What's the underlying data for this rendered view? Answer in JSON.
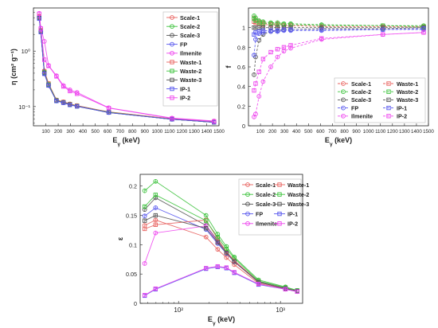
{
  "chart_data": [
    {
      "type": "line",
      "panel": "top-left",
      "xlabel": "Eγ (keV)",
      "xlabel_main": "E",
      "xlabel_sub": "γ",
      "xlabel_unit": " (keV)",
      "ylabel": "η (cm² g⁻¹)",
      "x_scale": "linear",
      "y_scale": "log",
      "xlim": [
        0,
        1500
      ],
      "ylim": [
        0.045,
        6
      ],
      "x_ticks": [
        "100",
        "200",
        "300",
        "400",
        "500",
        "600",
        "700",
        "800",
        "900",
        "1000",
        "1100",
        "1200",
        "1300",
        "1400",
        "1500"
      ],
      "y_ticks": [
        {
          "v": 0.1,
          "label": "10⁻¹"
        },
        {
          "v": 1,
          "label": "10⁰"
        }
      ],
      "legend_position": "top-right",
      "series": [
        {
          "name": "Scale-1",
          "color": "#e8615e",
          "marker": "o",
          "x": [
            46.5,
            59.5,
            88,
            122,
            186,
            242,
            295,
            352,
            609,
            1120,
            1460
          ],
          "y": [
            4.3,
            2.4,
            0.44,
            0.26,
            0.132,
            0.122,
            0.112,
            0.104,
            0.08,
            0.06,
            0.053
          ]
        },
        {
          "name": "Scale-2",
          "color": "#3cc23c",
          "marker": "o",
          "x": [
            46.5,
            59.5,
            88,
            122,
            186,
            242,
            295,
            352,
            609,
            1120,
            1460
          ],
          "y": [
            4.1,
            2.3,
            0.42,
            0.25,
            0.13,
            0.12,
            0.11,
            0.103,
            0.079,
            0.059,
            0.052
          ]
        },
        {
          "name": "Scale-3",
          "color": "#555555",
          "marker": "o",
          "x": [
            46.5,
            59.5,
            88,
            122,
            186,
            242,
            295,
            352,
            609,
            1120,
            1460
          ],
          "y": [
            4.0,
            2.25,
            0.4,
            0.24,
            0.128,
            0.118,
            0.108,
            0.102,
            0.079,
            0.059,
            0.052
          ]
        },
        {
          "name": "FP",
          "color": "#5555ee",
          "marker": "o",
          "x": [
            46.5,
            59.5,
            88,
            122,
            186,
            242,
            295,
            352,
            609,
            1120,
            1460
          ],
          "y": [
            3.9,
            2.2,
            0.39,
            0.24,
            0.126,
            0.117,
            0.107,
            0.101,
            0.078,
            0.059,
            0.052
          ]
        },
        {
          "name": "Ilmenite",
          "color": "#ee44ee",
          "marker": "o",
          "x": [
            46.5,
            59.5,
            88,
            122,
            186,
            242,
            295,
            352,
            609,
            1120,
            1460
          ],
          "y": [
            4.8,
            2.6,
            1.5,
            0.55,
            0.36,
            0.24,
            0.2,
            0.18,
            0.095,
            0.062,
            0.055
          ]
        },
        {
          "name": "Waste-1",
          "color": "#e8615e",
          "marker": "s",
          "x": [
            46.5,
            59.5,
            88,
            122,
            186,
            242,
            295,
            352,
            609,
            1120,
            1460
          ],
          "y": [
            4.2,
            2.35,
            0.43,
            0.26,
            0.131,
            0.121,
            0.111,
            0.104,
            0.08,
            0.06,
            0.053
          ]
        },
        {
          "name": "Waste-2",
          "color": "#3cc23c",
          "marker": "s",
          "x": [
            46.5,
            59.5,
            88,
            122,
            186,
            242,
            295,
            352,
            609,
            1120,
            1460
          ],
          "y": [
            4.0,
            2.3,
            0.41,
            0.25,
            0.129,
            0.119,
            0.109,
            0.102,
            0.079,
            0.059,
            0.052
          ]
        },
        {
          "name": "Waste-3",
          "color": "#555555",
          "marker": "s",
          "x": [
            46.5,
            59.5,
            88,
            122,
            186,
            242,
            295,
            352,
            609,
            1120,
            1460
          ],
          "y": [
            3.95,
            2.25,
            0.4,
            0.24,
            0.127,
            0.118,
            0.108,
            0.101,
            0.078,
            0.059,
            0.052
          ]
        },
        {
          "name": "IP-1",
          "color": "#5555ee",
          "marker": "s",
          "x": [
            46.5,
            59.5,
            88,
            122,
            186,
            242,
            295,
            352,
            609,
            1120,
            1460
          ],
          "y": [
            3.85,
            2.2,
            0.39,
            0.24,
            0.126,
            0.117,
            0.107,
            0.101,
            0.078,
            0.059,
            0.052
          ]
        },
        {
          "name": "IP-2",
          "color": "#ee44ee",
          "marker": "s",
          "x": [
            46.5,
            59.5,
            88,
            122,
            186,
            242,
            295,
            352,
            609,
            1120,
            1460
          ],
          "y": [
            4.7,
            2.55,
            0.7,
            0.54,
            0.35,
            0.23,
            0.19,
            0.17,
            0.094,
            0.061,
            0.054
          ]
        }
      ]
    },
    {
      "type": "line",
      "panel": "top-right",
      "xlabel": "Eγ (keV)",
      "xlabel_main": "E",
      "xlabel_sub": "γ",
      "xlabel_unit": " (keV)",
      "ylabel": "f",
      "x_scale": "linear",
      "y_scale": "linear",
      "xlim": [
        0,
        1500
      ],
      "ylim": [
        0,
        1.2
      ],
      "x_ticks": [
        "100",
        "200",
        "300",
        "400",
        "500",
        "600",
        "700",
        "800",
        "900",
        "1000",
        "1100",
        "1200",
        "1300",
        "1400",
        "1500"
      ],
      "y_ticks": [
        "0",
        "0.2",
        "0.4",
        "0.6",
        "0.8",
        "1"
      ],
      "legend_position": "bottom-right",
      "series": [
        {
          "name": "Scale-1",
          "color": "#e8615e",
          "marker": "o",
          "x": [
            46.5,
            59.5,
            88,
            122,
            186,
            242,
            295,
            352,
            609,
            1120,
            1460
          ],
          "y": [
            1.1,
            1.08,
            1.06,
            1.05,
            1.04,
            1.04,
            1.03,
            1.03,
            1.02,
            1.02,
            1.01
          ]
        },
        {
          "name": "Scale-2",
          "color": "#3cc23c",
          "marker": "o",
          "x": [
            46.5,
            59.5,
            88,
            122,
            186,
            242,
            295,
            352,
            609,
            1120,
            1460
          ],
          "y": [
            1.12,
            1.1,
            1.07,
            1.06,
            1.05,
            1.05,
            1.04,
            1.04,
            1.03,
            1.02,
            1.02
          ]
        },
        {
          "name": "Scale-3",
          "color": "#555555",
          "marker": "o",
          "x": [
            46.5,
            59.5,
            88,
            122,
            186,
            242,
            295,
            352,
            609,
            1120,
            1460
          ],
          "y": [
            0.52,
            0.7,
            0.87,
            0.93,
            0.96,
            0.97,
            0.98,
            0.98,
            0.99,
            0.99,
            1.0
          ]
        },
        {
          "name": "FP",
          "color": "#5555ee",
          "marker": "o",
          "x": [
            46.5,
            59.5,
            88,
            122,
            186,
            242,
            295,
            352,
            609,
            1120,
            1460
          ],
          "y": [
            0.72,
            0.88,
            0.94,
            0.95,
            0.96,
            0.96,
            0.97,
            0.97,
            0.97,
            0.98,
            0.98
          ]
        },
        {
          "name": "Ilmenite",
          "color": "#ee44ee",
          "marker": "o",
          "x": [
            46.5,
            59.5,
            88,
            122,
            186,
            242,
            295,
            352,
            609,
            1120,
            1460
          ],
          "y": [
            0.09,
            0.12,
            0.3,
            0.45,
            0.6,
            0.7,
            0.76,
            0.79,
            0.88,
            0.93,
            0.95
          ]
        },
        {
          "name": "Waste-1",
          "color": "#e8615e",
          "marker": "s",
          "x": [
            46.5,
            59.5,
            88,
            122,
            186,
            242,
            295,
            352,
            609,
            1120,
            1460
          ],
          "y": [
            1.06,
            1.05,
            1.04,
            1.03,
            1.03,
            1.02,
            1.02,
            1.02,
            1.01,
            1.01,
            1.01
          ]
        },
        {
          "name": "Waste-2",
          "color": "#3cc23c",
          "marker": "s",
          "x": [
            46.5,
            59.5,
            88,
            122,
            186,
            242,
            295,
            352,
            609,
            1120,
            1460
          ],
          "y": [
            1.09,
            1.07,
            1.05,
            1.04,
            1.04,
            1.03,
            1.03,
            1.03,
            1.02,
            1.02,
            1.01
          ]
        },
        {
          "name": "Waste-3",
          "color": "#555555",
          "marker": "s",
          "x": [
            46.5,
            59.5,
            88,
            122,
            186,
            242,
            295,
            352,
            609,
            1120,
            1460
          ],
          "y": [
            1.0,
            1.0,
            1.0,
            1.0,
            1.0,
            1.0,
            1.0,
            1.0,
            1.0,
            1.0,
            1.0
          ]
        },
        {
          "name": "IP-1",
          "color": "#5555ee",
          "marker": "s",
          "x": [
            46.5,
            59.5,
            88,
            122,
            186,
            242,
            295,
            352,
            609,
            1120,
            1460
          ],
          "y": [
            0.93,
            0.95,
            0.96,
            0.97,
            0.97,
            0.97,
            0.98,
            0.98,
            0.98,
            0.98,
            0.99
          ]
        },
        {
          "name": "IP-2",
          "color": "#ee44ee",
          "marker": "s",
          "x": [
            46.5,
            59.5,
            88,
            122,
            186,
            242,
            295,
            352,
            609,
            1120,
            1460
          ],
          "y": [
            0.36,
            0.43,
            0.55,
            0.68,
            0.75,
            0.78,
            0.8,
            0.82,
            0.89,
            0.93,
            0.95
          ]
        }
      ]
    },
    {
      "type": "line",
      "panel": "bottom-center",
      "xlabel": "Eγ (keV)",
      "xlabel_main": "E",
      "xlabel_sub": "γ",
      "xlabel_unit": " (keV)",
      "ylabel": "ε",
      "x_scale": "log",
      "y_scale": "linear",
      "xlim": [
        42,
        1650
      ],
      "ylim": [
        0,
        0.22
      ],
      "x_ticks": [
        {
          "v": 100,
          "label": "10²"
        },
        {
          "v": 1000,
          "label": "10³"
        }
      ],
      "y_ticks": [
        "0",
        "0.05",
        "0.1",
        "0.15",
        "0.2"
      ],
      "legend_position": "top-right",
      "series": [
        {
          "name": "Scale-1",
          "color": "#e8615e",
          "marker": "o",
          "x": [
            46.5,
            59.5,
            186,
            242,
            295,
            352,
            609,
            1120,
            1460
          ],
          "y": [
            0.133,
            0.142,
            0.113,
            0.092,
            0.078,
            0.066,
            0.034,
            0.024,
            0.02
          ]
        },
        {
          "name": "Scale-2",
          "color": "#3cc23c",
          "marker": "o",
          "x": [
            46.5,
            59.5,
            186,
            242,
            295,
            352,
            609,
            1120,
            1460
          ],
          "y": [
            0.192,
            0.208,
            0.15,
            0.118,
            0.097,
            0.079,
            0.04,
            0.028,
            0.022
          ]
        },
        {
          "name": "Scale-3",
          "color": "#555555",
          "marker": "o",
          "x": [
            46.5,
            59.5,
            186,
            242,
            295,
            352,
            609,
            1120,
            1460
          ],
          "y": [
            0.16,
            0.18,
            0.133,
            0.107,
            0.088,
            0.073,
            0.037,
            0.026,
            0.021
          ]
        },
        {
          "name": "FP",
          "color": "#5555ee",
          "marker": "o",
          "x": [
            46.5,
            59.5,
            186,
            242,
            295,
            352,
            609,
            1120,
            1460
          ],
          "y": [
            0.149,
            0.163,
            0.126,
            0.102,
            0.085,
            0.071,
            0.036,
            0.025,
            0.021
          ]
        },
        {
          "name": "Ilmenite",
          "color": "#ee44ee",
          "marker": "o",
          "x": [
            46.5,
            59.5,
            186,
            242,
            295,
            352,
            609,
            1120,
            1460
          ],
          "y": [
            0.068,
            0.12,
            0.132,
            0.105,
            0.086,
            0.072,
            0.036,
            0.025,
            0.021
          ]
        },
        {
          "name": "Waste-1",
          "color": "#e8615e",
          "marker": "s",
          "x": [
            46.5,
            59.5,
            186,
            242,
            295,
            352,
            609,
            1120,
            1460
          ],
          "y": [
            0.127,
            0.134,
            0.142,
            0.11,
            0.088,
            0.073,
            0.036,
            0.025,
            0.021
          ]
        },
        {
          "name": "Waste-2",
          "color": "#3cc23c",
          "marker": "s",
          "x": [
            46.5,
            59.5,
            186,
            242,
            295,
            352,
            609,
            1120,
            1460
          ],
          "y": [
            0.165,
            0.185,
            0.141,
            0.113,
            0.093,
            0.077,
            0.038,
            0.027,
            0.022
          ]
        },
        {
          "name": "Waste-3",
          "color": "#555555",
          "marker": "s",
          "x": [
            46.5,
            59.5,
            186,
            242,
            295,
            352,
            609,
            1120,
            1460
          ],
          "y": [
            0.141,
            0.15,
            0.128,
            0.104,
            0.086,
            0.071,
            0.036,
            0.025,
            0.021
          ]
        },
        {
          "name": "IP-1",
          "color": "#5555ee",
          "marker": "s",
          "x": [
            46.5,
            59.5,
            186,
            242,
            295,
            352,
            609,
            1120,
            1460
          ],
          "y": [
            0.013,
            0.024,
            0.059,
            0.062,
            0.06,
            0.052,
            0.032,
            0.024,
            0.02
          ]
        },
        {
          "name": "IP-2",
          "color": "#ee44ee",
          "marker": "s",
          "x": [
            46.5,
            59.5,
            186,
            242,
            295,
            352,
            609,
            1120,
            1460
          ],
          "y": [
            0.014,
            0.025,
            0.06,
            0.063,
            0.061,
            0.053,
            0.033,
            0.024,
            0.02
          ]
        }
      ]
    }
  ]
}
